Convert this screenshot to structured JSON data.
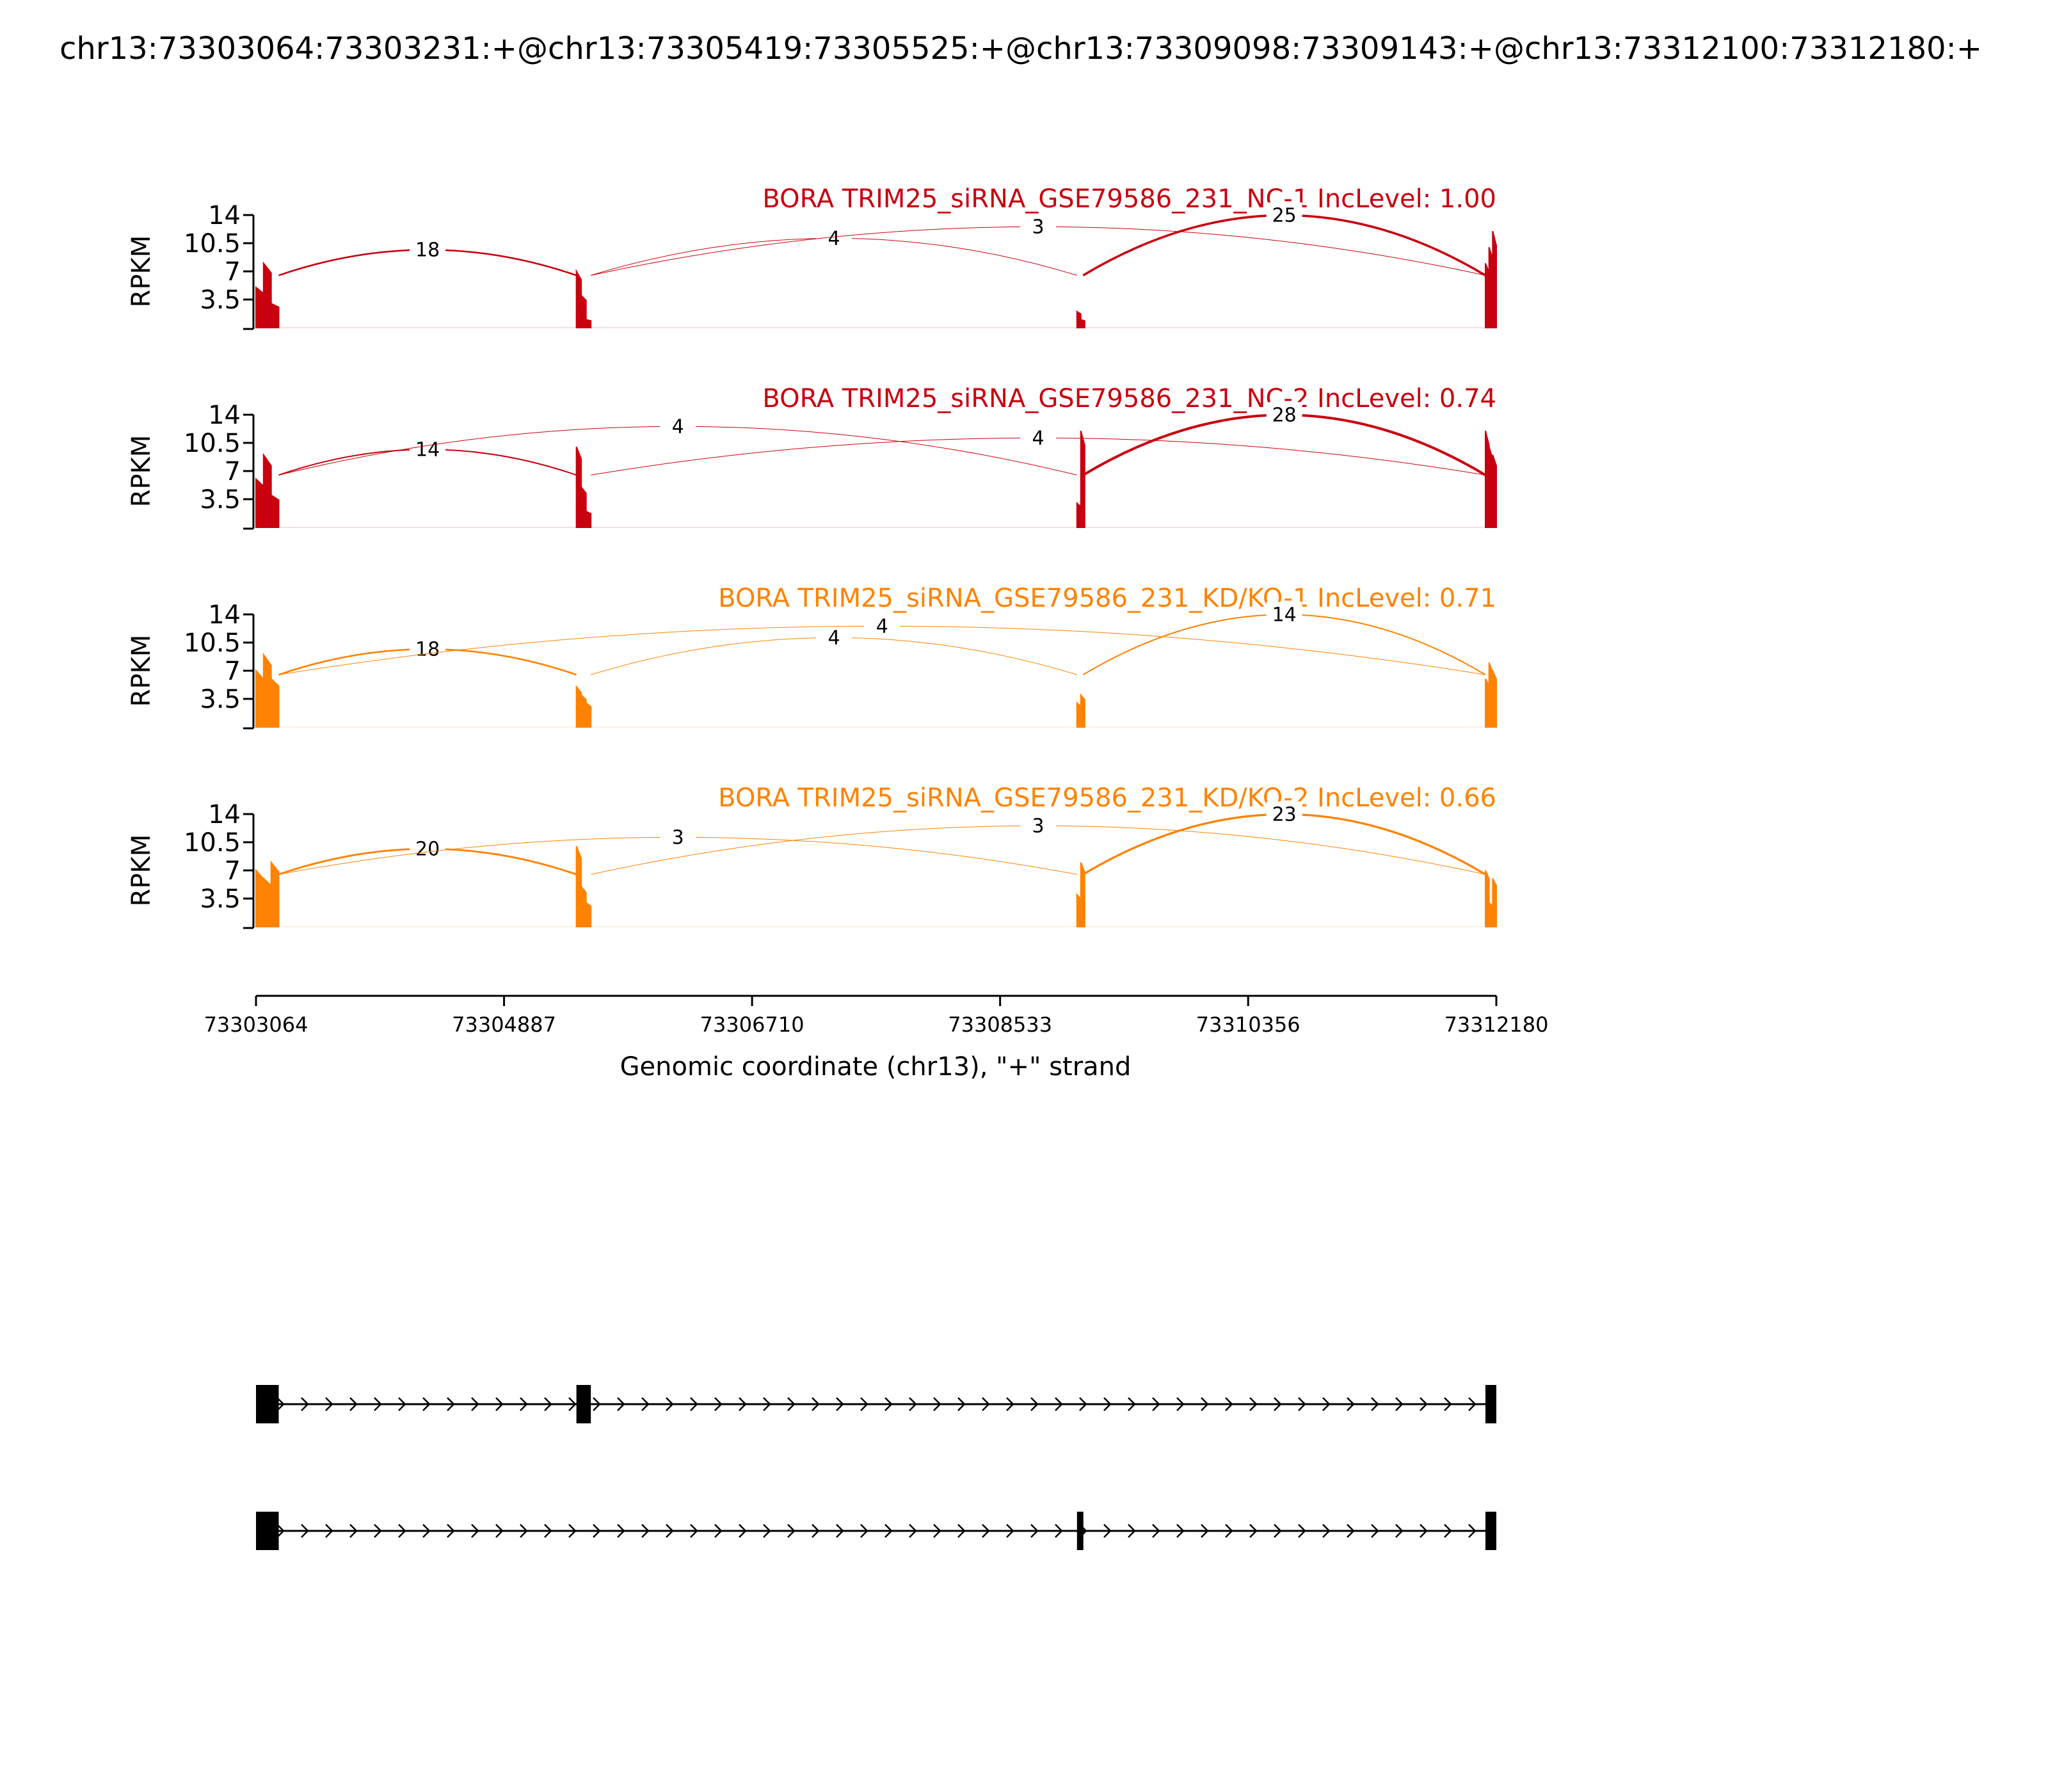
{
  "page_title": "chr13:73303064:73303231:+@chr13:73305419:73305525:+@chr13:73309098:73309143:+@chr13:73312100:73312180:+",
  "colors": {
    "nc": "#c8000f",
    "kd": "#ff8200",
    "axis": "#000000",
    "gene": "#000000"
  },
  "chart_data": {
    "type": "sashimi",
    "ylabel": "RPKM",
    "xlabel": "Genomic coordinate (chr13), \"+\" strand",
    "xlim": [
      73303064,
      73312180
    ],
    "ylim": [
      0,
      14
    ],
    "y_ticks": [
      "14",
      "10.5",
      "7",
      "3.5"
    ],
    "x_ticks": [
      {
        "value": 73303064,
        "label": "73303064"
      },
      {
        "value": 73304887,
        "label": "73304887"
      },
      {
        "value": 73306710,
        "label": "73306710"
      },
      {
        "value": 73308533,
        "label": "73308533"
      },
      {
        "value": 73310356,
        "label": "73310356"
      },
      {
        "value": 73312180,
        "label": "73312180"
      }
    ],
    "exons": [
      {
        "start": 73303064,
        "end": 73303231
      },
      {
        "start": 73305419,
        "end": 73305525
      },
      {
        "start": 73309098,
        "end": 73309143
      },
      {
        "start": 73312100,
        "end": 73312180
      }
    ],
    "tracks": [
      {
        "title": "BORA TRIM25_siRNA_GSE79586_231_NC-1 IncLevel: 1.00",
        "color_key": "nc",
        "exon_heights": [
          [
            5,
            8,
            3
          ],
          [
            7,
            4,
            1
          ],
          [
            2,
            1
          ],
          [
            8,
            10,
            12
          ]
        ],
        "junctions": [
          {
            "from": 73303231,
            "to": 73305419,
            "count": "18",
            "side": "above"
          },
          {
            "from": 73305525,
            "to": 73309098,
            "count": "4",
            "side": "above"
          },
          {
            "from": 73305525,
            "to": 73312100,
            "count": "3",
            "side": "above"
          },
          {
            "from": 73309143,
            "to": 73312100,
            "count": "25",
            "side": "above"
          }
        ]
      },
      {
        "title": "BORA TRIM25_siRNA_GSE79586_231_NC-2 IncLevel: 0.74",
        "color_key": "nc",
        "exon_heights": [
          [
            6,
            9,
            4
          ],
          [
            10,
            5,
            2
          ],
          [
            3,
            12
          ],
          [
            12,
            10,
            9
          ]
        ],
        "junctions": [
          {
            "from": 73303231,
            "to": 73305419,
            "count": "14",
            "side": "above"
          },
          {
            "from": 73305525,
            "to": 73312100,
            "count": "4",
            "side": "above"
          },
          {
            "from": 73303231,
            "to": 73309098,
            "count": "4",
            "side": "above"
          },
          {
            "from": 73309143,
            "to": 73312100,
            "count": "28",
            "side": "above"
          }
        ]
      },
      {
        "title": "BORA TRIM25_siRNA_GSE79586_231_KD/KO-1 IncLevel: 0.71",
        "color_key": "kd",
        "exon_heights": [
          [
            7,
            9,
            6
          ],
          [
            5,
            4,
            3
          ],
          [
            3,
            4
          ],
          [
            6,
            8,
            7
          ]
        ],
        "junctions": [
          {
            "from": 73303231,
            "to": 73305419,
            "count": "18",
            "side": "above"
          },
          {
            "from": 73305525,
            "to": 73309098,
            "count": "4",
            "side": "above"
          },
          {
            "from": 73303231,
            "to": 73312100,
            "count": "4",
            "side": "above"
          },
          {
            "from": 73309143,
            "to": 73312100,
            "count": "14",
            "side": "above"
          }
        ]
      },
      {
        "title": "BORA TRIM25_siRNA_GSE79586_231_KD/KO-2 IncLevel: 0.66",
        "color_key": "kd",
        "exon_heights": [
          [
            7,
            6,
            8
          ],
          [
            10,
            5,
            3
          ],
          [
            4,
            8
          ],
          [
            7,
            3,
            6
          ]
        ],
        "junctions": [
          {
            "from": 73303231,
            "to": 73305419,
            "count": "20",
            "side": "above"
          },
          {
            "from": 73303231,
            "to": 73309098,
            "count": "3",
            "side": "above"
          },
          {
            "from": 73305525,
            "to": 73312100,
            "count": "3",
            "side": "above"
          },
          {
            "from": 73309143,
            "to": 73312100,
            "count": "23",
            "side": "above"
          }
        ]
      }
    ],
    "isoforms": [
      {
        "exons": [
          0,
          1,
          3
        ]
      },
      {
        "exons": [
          0,
          2,
          3
        ]
      }
    ]
  }
}
